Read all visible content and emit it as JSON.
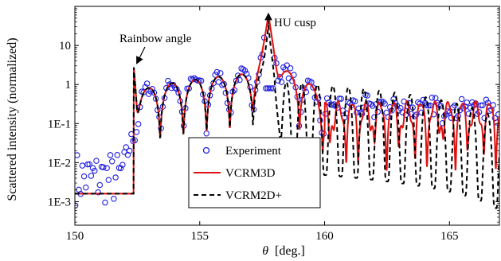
{
  "chart_data": {
    "type": "scatter",
    "title": "",
    "xlabel_symbol": "θ",
    "xlabel_unit": "[deg.]",
    "ylabel": "Scattered intensity (normalized)",
    "xlim": [
      150,
      167
    ],
    "ylim": [
      0.00025,
      100
    ],
    "yscale": "log",
    "x_ticks": [
      150,
      155,
      160,
      165
    ],
    "x_tick_labels": [
      "150",
      "155",
      "160",
      "165"
    ],
    "y_ticks": [
      0.001,
      0.01,
      0.1,
      1,
      10
    ],
    "y_tick_labels": [
      "1E-3",
      "1E-2",
      "1E-1",
      "1",
      "10"
    ],
    "grid": false,
    "legend_position": "bottom-center",
    "series": [
      {
        "name": "Experiment",
        "style": "circles",
        "color": "#1f1fe0"
      },
      {
        "name": "VCRM3D",
        "style": "solid-line",
        "color": "#e01010"
      },
      {
        "name": "VCRM2D+",
        "style": "dashed-line",
        "color": "#000000"
      }
    ],
    "annotations": [
      {
        "text": "Rainbow angle",
        "x": 152.35,
        "y": 3.0
      },
      {
        "text": "HU cusp",
        "x": 157.75,
        "y": 15
      }
    ],
    "model": {
      "baseline": 0.0016,
      "rainbow_angle": 152.35,
      "rainbow_peak": 3.0,
      "hu_cusp_angle": 157.75,
      "hu_cusp_peak_3d": 60,
      "hu_cusp_peak_2d": 30,
      "oscillation_period_deg": 0.93,
      "vcrm2d_divergence_angle": 158.0
    }
  }
}
